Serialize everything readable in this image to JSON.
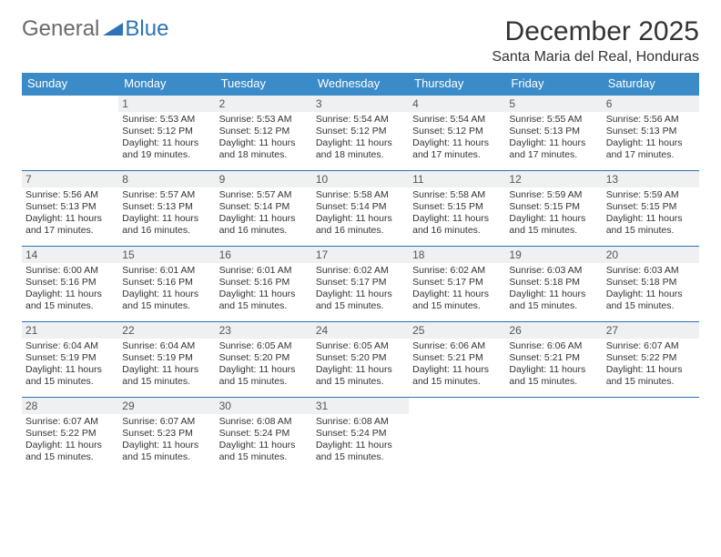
{
  "logo": {
    "part1": "General",
    "part2": "Blue"
  },
  "title": "December 2025",
  "location": "Santa Maria del Real, Honduras",
  "colors": {
    "header_bg": "#3b8bc8",
    "rule": "#2d73b6",
    "num_bg": "#eef0f1",
    "text": "#333333",
    "logo_gray": "#6a6a6a",
    "logo_blue": "#2d73b6",
    "page_bg": "#ffffff"
  },
  "daynames": [
    "Sunday",
    "Monday",
    "Tuesday",
    "Wednesday",
    "Thursday",
    "Friday",
    "Saturday"
  ],
  "weeks": [
    [
      {
        "n": "",
        "sunrise": "",
        "sunset": "",
        "daylight": ""
      },
      {
        "n": "1",
        "sunrise": "Sunrise: 5:53 AM",
        "sunset": "Sunset: 5:12 PM",
        "daylight": "Daylight: 11 hours and 19 minutes."
      },
      {
        "n": "2",
        "sunrise": "Sunrise: 5:53 AM",
        "sunset": "Sunset: 5:12 PM",
        "daylight": "Daylight: 11 hours and 18 minutes."
      },
      {
        "n": "3",
        "sunrise": "Sunrise: 5:54 AM",
        "sunset": "Sunset: 5:12 PM",
        "daylight": "Daylight: 11 hours and 18 minutes."
      },
      {
        "n": "4",
        "sunrise": "Sunrise: 5:54 AM",
        "sunset": "Sunset: 5:12 PM",
        "daylight": "Daylight: 11 hours and 17 minutes."
      },
      {
        "n": "5",
        "sunrise": "Sunrise: 5:55 AM",
        "sunset": "Sunset: 5:13 PM",
        "daylight": "Daylight: 11 hours and 17 minutes."
      },
      {
        "n": "6",
        "sunrise": "Sunrise: 5:56 AM",
        "sunset": "Sunset: 5:13 PM",
        "daylight": "Daylight: 11 hours and 17 minutes."
      }
    ],
    [
      {
        "n": "7",
        "sunrise": "Sunrise: 5:56 AM",
        "sunset": "Sunset: 5:13 PM",
        "daylight": "Daylight: 11 hours and 17 minutes."
      },
      {
        "n": "8",
        "sunrise": "Sunrise: 5:57 AM",
        "sunset": "Sunset: 5:13 PM",
        "daylight": "Daylight: 11 hours and 16 minutes."
      },
      {
        "n": "9",
        "sunrise": "Sunrise: 5:57 AM",
        "sunset": "Sunset: 5:14 PM",
        "daylight": "Daylight: 11 hours and 16 minutes."
      },
      {
        "n": "10",
        "sunrise": "Sunrise: 5:58 AM",
        "sunset": "Sunset: 5:14 PM",
        "daylight": "Daylight: 11 hours and 16 minutes."
      },
      {
        "n": "11",
        "sunrise": "Sunrise: 5:58 AM",
        "sunset": "Sunset: 5:15 PM",
        "daylight": "Daylight: 11 hours and 16 minutes."
      },
      {
        "n": "12",
        "sunrise": "Sunrise: 5:59 AM",
        "sunset": "Sunset: 5:15 PM",
        "daylight": "Daylight: 11 hours and 15 minutes."
      },
      {
        "n": "13",
        "sunrise": "Sunrise: 5:59 AM",
        "sunset": "Sunset: 5:15 PM",
        "daylight": "Daylight: 11 hours and 15 minutes."
      }
    ],
    [
      {
        "n": "14",
        "sunrise": "Sunrise: 6:00 AM",
        "sunset": "Sunset: 5:16 PM",
        "daylight": "Daylight: 11 hours and 15 minutes."
      },
      {
        "n": "15",
        "sunrise": "Sunrise: 6:01 AM",
        "sunset": "Sunset: 5:16 PM",
        "daylight": "Daylight: 11 hours and 15 minutes."
      },
      {
        "n": "16",
        "sunrise": "Sunrise: 6:01 AM",
        "sunset": "Sunset: 5:16 PM",
        "daylight": "Daylight: 11 hours and 15 minutes."
      },
      {
        "n": "17",
        "sunrise": "Sunrise: 6:02 AM",
        "sunset": "Sunset: 5:17 PM",
        "daylight": "Daylight: 11 hours and 15 minutes."
      },
      {
        "n": "18",
        "sunrise": "Sunrise: 6:02 AM",
        "sunset": "Sunset: 5:17 PM",
        "daylight": "Daylight: 11 hours and 15 minutes."
      },
      {
        "n": "19",
        "sunrise": "Sunrise: 6:03 AM",
        "sunset": "Sunset: 5:18 PM",
        "daylight": "Daylight: 11 hours and 15 minutes."
      },
      {
        "n": "20",
        "sunrise": "Sunrise: 6:03 AM",
        "sunset": "Sunset: 5:18 PM",
        "daylight": "Daylight: 11 hours and 15 minutes."
      }
    ],
    [
      {
        "n": "21",
        "sunrise": "Sunrise: 6:04 AM",
        "sunset": "Sunset: 5:19 PM",
        "daylight": "Daylight: 11 hours and 15 minutes."
      },
      {
        "n": "22",
        "sunrise": "Sunrise: 6:04 AM",
        "sunset": "Sunset: 5:19 PM",
        "daylight": "Daylight: 11 hours and 15 minutes."
      },
      {
        "n": "23",
        "sunrise": "Sunrise: 6:05 AM",
        "sunset": "Sunset: 5:20 PM",
        "daylight": "Daylight: 11 hours and 15 minutes."
      },
      {
        "n": "24",
        "sunrise": "Sunrise: 6:05 AM",
        "sunset": "Sunset: 5:20 PM",
        "daylight": "Daylight: 11 hours and 15 minutes."
      },
      {
        "n": "25",
        "sunrise": "Sunrise: 6:06 AM",
        "sunset": "Sunset: 5:21 PM",
        "daylight": "Daylight: 11 hours and 15 minutes."
      },
      {
        "n": "26",
        "sunrise": "Sunrise: 6:06 AM",
        "sunset": "Sunset: 5:21 PM",
        "daylight": "Daylight: 11 hours and 15 minutes."
      },
      {
        "n": "27",
        "sunrise": "Sunrise: 6:07 AM",
        "sunset": "Sunset: 5:22 PM",
        "daylight": "Daylight: 11 hours and 15 minutes."
      }
    ],
    [
      {
        "n": "28",
        "sunrise": "Sunrise: 6:07 AM",
        "sunset": "Sunset: 5:22 PM",
        "daylight": "Daylight: 11 hours and 15 minutes."
      },
      {
        "n": "29",
        "sunrise": "Sunrise: 6:07 AM",
        "sunset": "Sunset: 5:23 PM",
        "daylight": "Daylight: 11 hours and 15 minutes."
      },
      {
        "n": "30",
        "sunrise": "Sunrise: 6:08 AM",
        "sunset": "Sunset: 5:24 PM",
        "daylight": "Daylight: 11 hours and 15 minutes."
      },
      {
        "n": "31",
        "sunrise": "Sunrise: 6:08 AM",
        "sunset": "Sunset: 5:24 PM",
        "daylight": "Daylight: 11 hours and 15 minutes."
      },
      {
        "n": "",
        "sunrise": "",
        "sunset": "",
        "daylight": ""
      },
      {
        "n": "",
        "sunrise": "",
        "sunset": "",
        "daylight": ""
      },
      {
        "n": "",
        "sunrise": "",
        "sunset": "",
        "daylight": ""
      }
    ]
  ]
}
